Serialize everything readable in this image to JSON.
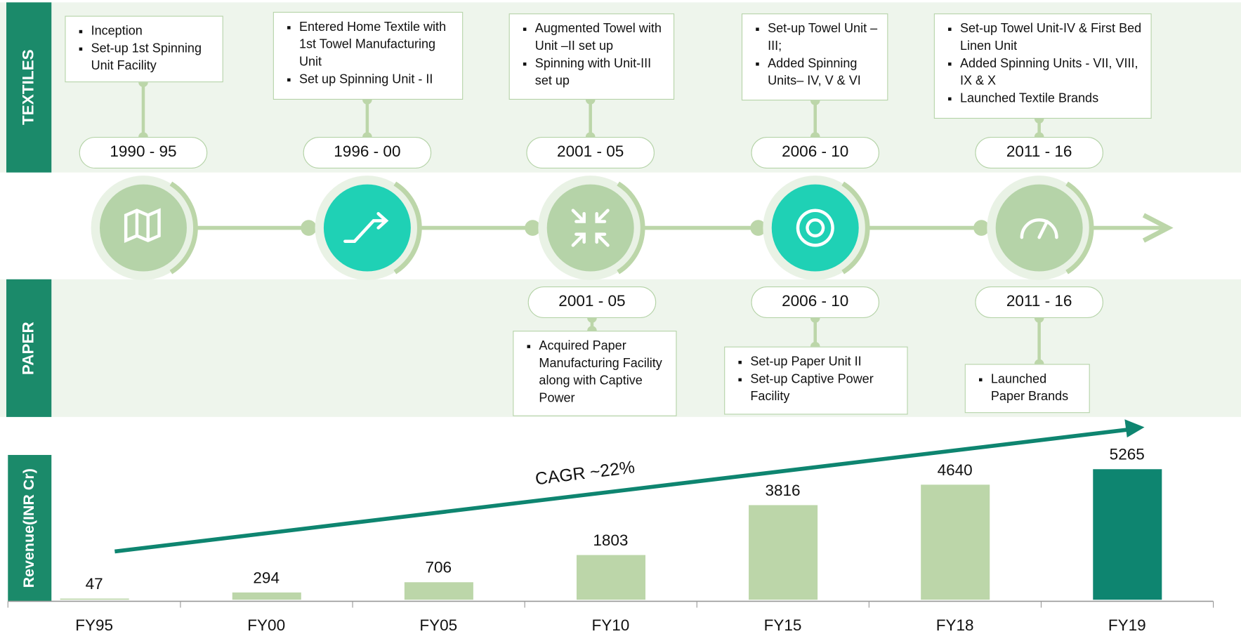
{
  "timeline": {
    "textiles_label": "TEXTILES",
    "paper_label": "PAPER",
    "textiles": [
      {
        "period": "1990 - 95",
        "items": [
          "Inception",
          "Set-up 1st Spinning Unit Facility"
        ]
      },
      {
        "period": "1996 - 00",
        "items": [
          "Entered Home Textile with 1st Towel Manufacturing Unit",
          "Set up Spinning Unit - II"
        ]
      },
      {
        "period": "2001 - 05",
        "items": [
          "Augmented Towel with Unit –II  set up",
          "Spinning with Unit-III set up"
        ]
      },
      {
        "period": "2006 - 10",
        "items": [
          "Set-up Towel Unit – III;",
          "Added Spinning Units– IV, V & VI"
        ]
      },
      {
        "period": "2011 - 16",
        "items": [
          "Set-up Towel Unit-IV & First Bed Linen Unit",
          "Added Spinning Units - VII, VIII, IX & X",
          "Launched Textile Brands"
        ]
      }
    ],
    "paper": [
      {
        "period": "2001 - 05",
        "items": [
          "Acquired Paper Manufacturing Facility along with Captive Power"
        ]
      },
      {
        "period": "2006 - 10",
        "items": [
          "Set-up Paper Unit II",
          "Set-up Captive Power Facility"
        ]
      },
      {
        "period": "2011 - 16",
        "items": [
          "Launched Paper Brands"
        ]
      }
    ]
  },
  "chart_data": {
    "type": "bar",
    "ylabel": "Revenue(INR Cr)",
    "annotation": "CAGR ~22%",
    "categories": [
      "FY95",
      "FY00",
      "FY05",
      "FY10",
      "FY15",
      "FY18",
      "FY19"
    ],
    "values": [
      47,
      294,
      706,
      1803,
      3816,
      4640,
      5265
    ],
    "colors": [
      "#bcd6a9",
      "#bcd6a9",
      "#bcd6a9",
      "#bcd6a9",
      "#bcd6a9",
      "#bcd6a9",
      "#0e8570"
    ]
  }
}
